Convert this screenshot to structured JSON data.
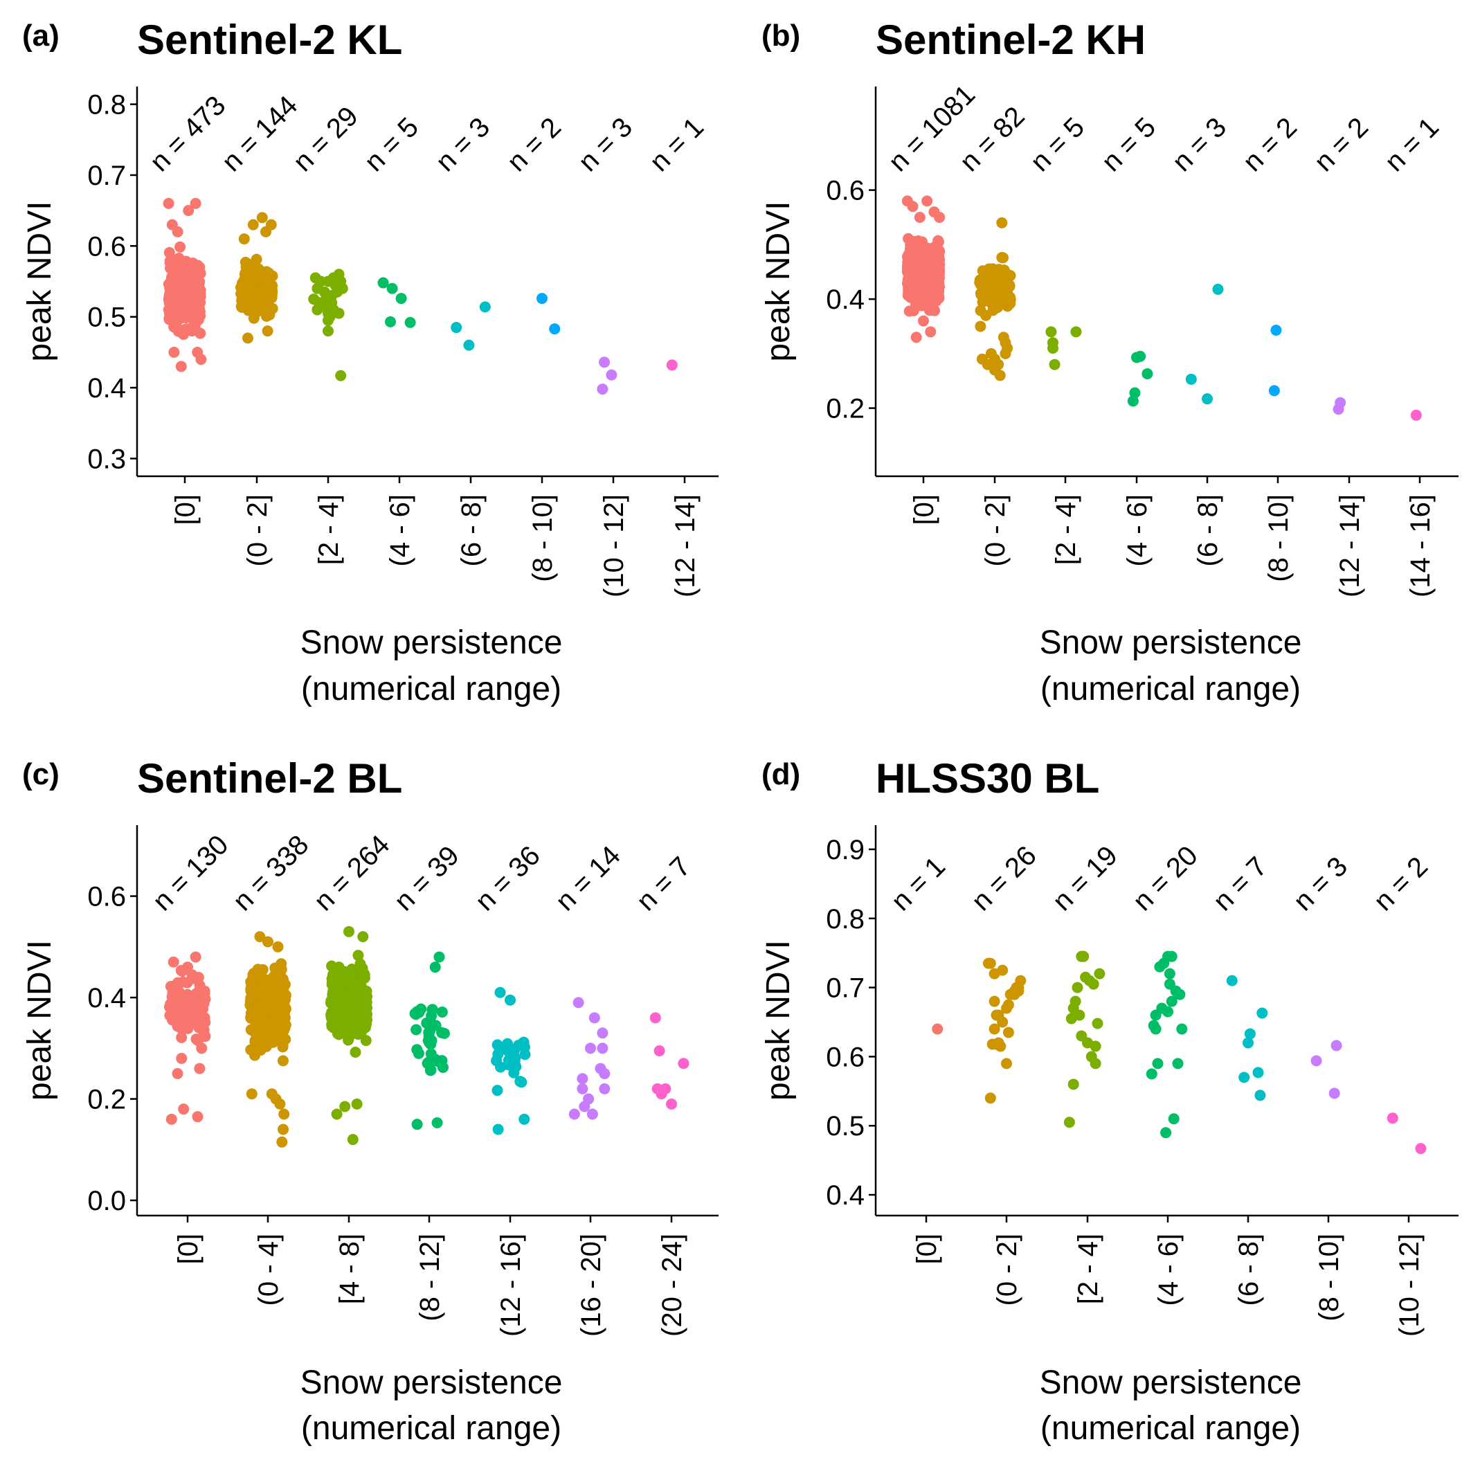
{
  "chart_data": [
    {
      "type": "scatter",
      "letter": "(a)",
      "title": "Sentinel-2 KL",
      "ylabel": "peak NDVI",
      "xlabel_lines": [
        "Snow persistence",
        "(numerical range)"
      ],
      "ylim": [
        0.275,
        0.825
      ],
      "yticks": [
        0.3,
        0.4,
        0.5,
        0.6,
        0.7,
        0.8
      ],
      "ytick_labels": [
        "0.3",
        "0.4",
        "0.5",
        "0.6",
        "0.7",
        "0.8"
      ],
      "categories": [
        "[0]",
        "(0 - 2]",
        "[2 - 4]",
        "(4 - 6]",
        "(6 - 8]",
        "(8 - 10]",
        "(10 - 12]",
        "(12 - 14]"
      ],
      "counts": [
        "n = 473",
        "n = 144",
        "n = 29",
        "n = 5",
        "n = 3",
        "n = 2",
        "n = 3",
        "n = 1"
      ],
      "series": [
        {
          "name": "[0]",
          "color": "#F8766D",
          "n": 473,
          "range": [
            0.43,
            0.66
          ],
          "center": 0.535,
          "x": [
            -0.45,
            -0.4,
            -0.3,
            -0.2,
            -0.1,
            0.0,
            0.1,
            0.2,
            0.3,
            0.4,
            0.45,
            -0.35,
            0.35
          ],
          "y": [
            0.66,
            0.5,
            0.45,
            0.62,
            0.43,
            0.55,
            0.65,
            0.48,
            0.66,
            0.52,
            0.44,
            0.63,
            0.45
          ]
        },
        {
          "name": "(0 - 2]",
          "color": "#CD9600",
          "n": 144,
          "range": [
            0.465,
            0.64
          ],
          "center": 0.535,
          "x": [
            -0.35,
            -0.1,
            0.15,
            0.25,
            0.4,
            -0.25,
            0.3
          ],
          "y": [
            0.61,
            0.63,
            0.64,
            0.62,
            0.63,
            0.47,
            0.48
          ]
        },
        {
          "name": "[2 - 4]",
          "color": "#7CAE00",
          "n": 29,
          "x": [
            -0.35,
            -0.3,
            -0.2,
            -0.1,
            0.0,
            0.05,
            0.15,
            0.25,
            0.35,
            -0.4,
            -0.15,
            0.1,
            0.3,
            0.0,
            0.2,
            -0.25,
            0.05,
            0.15,
            0.3,
            -0.05,
            0.1,
            0.2,
            0.25,
            0.0,
            -0.3,
            0.1,
            0.4,
            0.35,
            0.0
          ],
          "y": [
            0.555,
            0.54,
            0.55,
            0.535,
            0.55,
            0.52,
            0.555,
            0.54,
            0.55,
            0.525,
            0.515,
            0.53,
            0.505,
            0.48,
            0.545,
            0.52,
            0.5,
            0.51,
            0.56,
            0.53,
            0.52,
            0.545,
            0.535,
            0.505,
            0.51,
            0.53,
            0.54,
            0.417,
            0.495
          ]
        },
        {
          "name": "(4 - 6]",
          "color": "#00BE67",
          "n": 5,
          "x": [
            -0.45,
            -0.2,
            0.05,
            0.3,
            -0.25
          ],
          "y": [
            0.548,
            0.54,
            0.526,
            0.492,
            0.493
          ]
        },
        {
          "name": "(6 - 8]",
          "color": "#00BFC4",
          "n": 3,
          "x": [
            -0.4,
            -0.05,
            0.4
          ],
          "y": [
            0.485,
            0.46,
            0.514
          ]
        },
        {
          "name": "(8 - 10]",
          "color": "#00A9FF",
          "n": 2,
          "x": [
            0.0,
            0.35
          ],
          "y": [
            0.526,
            0.483
          ]
        },
        {
          "name": "(10 - 12]",
          "color": "#C77CFF",
          "n": 3,
          "x": [
            -0.3,
            -0.25,
            -0.05
          ],
          "y": [
            0.398,
            0.436,
            0.418
          ]
        },
        {
          "name": "(12 - 14]",
          "color": "#FF61CC",
          "n": 1,
          "x": [
            -0.35
          ],
          "y": [
            0.432
          ]
        }
      ]
    },
    {
      "type": "scatter",
      "letter": "(b)",
      "title": "Sentinel-2 KH",
      "ylabel": "peak NDVI",
      "xlabel_lines": [
        "Snow persistence",
        "(numerical range)"
      ],
      "ylim": [
        0.075,
        0.79
      ],
      "yticks": [
        0.2,
        0.4,
        0.6
      ],
      "ytick_labels": [
        "0.2",
        "0.4",
        "0.6"
      ],
      "categories": [
        "[0]",
        "(0 - 2]",
        "[2 - 4]",
        "(4 - 6]",
        "(6 - 8]",
        "(8 - 10]",
        "(12 - 14]",
        "(14 - 16]"
      ],
      "counts": [
        "n = 1081",
        "n = 82",
        "n = 5",
        "n = 5",
        "n = 3",
        "n = 2",
        "n = 2",
        "n = 1"
      ],
      "series": [
        {
          "name": "[0]",
          "color": "#F8766D",
          "n": 1081,
          "range": [
            0.33,
            0.58
          ],
          "center": 0.445,
          "x": [
            -0.45,
            -0.3,
            -0.1,
            0.1,
            0.3,
            0.45,
            -0.2,
            0.2,
            0.0
          ],
          "y": [
            0.58,
            0.57,
            0.55,
            0.58,
            0.56,
            0.55,
            0.33,
            0.34,
            0.36
          ]
        },
        {
          "name": "(0 - 2]",
          "color": "#CD9600",
          "n": 82,
          "range": [
            0.27,
            0.54
          ],
          "center": 0.42,
          "x": [
            -0.35,
            -0.2,
            0.0,
            0.15,
            0.3,
            -0.4,
            -0.1,
            0.1,
            0.25,
            0.35,
            0.0,
            0.2,
            -0.25,
            0.3
          ],
          "y": [
            0.29,
            0.28,
            0.29,
            0.26,
            0.3,
            0.35,
            0.3,
            0.28,
            0.33,
            0.31,
            0.27,
            0.54,
            0.37,
            0.32
          ]
        },
        {
          "name": "[2 - 4]",
          "color": "#7CAE00",
          "n": 5,
          "x": [
            -0.4,
            -0.35,
            -0.3,
            -0.35,
            0.3
          ],
          "y": [
            0.34,
            0.32,
            0.28,
            0.31,
            0.34
          ]
        },
        {
          "name": "(4 - 6]",
          "color": "#00BE67",
          "n": 5,
          "x": [
            -0.1,
            0.0,
            0.1,
            0.3,
            -0.05
          ],
          "y": [
            0.213,
            0.293,
            0.295,
            0.263,
            0.228
          ]
        },
        {
          "name": "(6 - 8]",
          "color": "#00BFC4",
          "n": 3,
          "x": [
            -0.45,
            0.0,
            0.3
          ],
          "y": [
            0.253,
            0.217,
            0.418
          ]
        },
        {
          "name": "(8 - 10]",
          "color": "#00A9FF",
          "n": 2,
          "x": [
            -0.1,
            -0.05
          ],
          "y": [
            0.232,
            0.343
          ]
        },
        {
          "name": "(12 - 14]",
          "color": "#C77CFF",
          "n": 2,
          "x": [
            -0.3,
            -0.25
          ],
          "y": [
            0.198,
            0.21
          ]
        },
        {
          "name": "(14 - 16]",
          "color": "#FF61CC",
          "n": 1,
          "x": [
            -0.1
          ],
          "y": [
            0.187
          ]
        }
      ]
    },
    {
      "type": "scatter",
      "letter": "(c)",
      "title": "Sentinel-2 BL",
      "ylabel": "peak NDVI",
      "xlabel_lines": [
        "Snow persistence",
        "(numerical range)"
      ],
      "ylim": [
        -0.03,
        0.74
      ],
      "yticks": [
        0.0,
        0.2,
        0.4,
        0.6
      ],
      "ytick_labels": [
        "0.0",
        "0.2",
        "0.4",
        "0.6"
      ],
      "categories": [
        "[0]",
        "(0 - 4]",
        "[4 - 8]",
        "(8 - 12]",
        "(12 - 16]",
        "(16 - 20]",
        "(20 - 24]"
      ],
      "counts": [
        "n = 130",
        "n = 338",
        "n = 264",
        "n = 39",
        "n = 36",
        "n = 14",
        "n = 7"
      ],
      "series": [
        {
          "name": "[0]",
          "color": "#F8766D",
          "n": 130,
          "range": [
            0.16,
            0.48
          ],
          "center": 0.38,
          "x": [
            -0.4,
            -0.1,
            0.25,
            -0.15,
            0.3,
            -0.35,
            0.0,
            0.2,
            -0.25,
            0.35
          ],
          "y": [
            0.16,
            0.18,
            0.165,
            0.28,
            0.26,
            0.47,
            0.46,
            0.48,
            0.25,
            0.3
          ]
        },
        {
          "name": "(0 - 4]",
          "color": "#CD9600",
          "n": 338,
          "range": [
            0.115,
            0.52
          ],
          "center": 0.38,
          "x": [
            0.35,
            0.38,
            0.4,
            0.3,
            0.2,
            0.1,
            -0.4,
            -0.2,
            0.0,
            0.25
          ],
          "y": [
            0.115,
            0.14,
            0.17,
            0.19,
            0.2,
            0.21,
            0.21,
            0.52,
            0.51,
            0.5
          ]
        },
        {
          "name": "[4 - 8]",
          "color": "#7CAE00",
          "n": 264,
          "range": [
            0.15,
            0.53
          ],
          "center": 0.39,
          "x": [
            0.1,
            -0.1,
            0.2,
            -0.3,
            0.35,
            0.0
          ],
          "y": [
            0.12,
            0.185,
            0.19,
            0.17,
            0.52,
            0.53
          ]
        },
        {
          "name": "(8 - 12]",
          "color": "#00BE67",
          "n": 39,
          "spread": 0.38,
          "range": [
            0.15,
            0.48
          ],
          "center": 0.32,
          "x": [
            -0.3,
            0.2,
            0.25,
            0.15
          ],
          "y": [
            0.15,
            0.153,
            0.48,
            0.46
          ]
        },
        {
          "name": "(12 - 16]",
          "color": "#00BFC4",
          "n": 36,
          "spread": 0.4,
          "range": [
            0.14,
            0.41
          ],
          "center": 0.28,
          "x": [
            -0.3,
            0.35,
            -0.25,
            0.0
          ],
          "y": [
            0.14,
            0.16,
            0.41,
            0.395
          ]
        },
        {
          "name": "(16 - 20]",
          "color": "#C77CFF",
          "n": 14,
          "x": [
            -0.4,
            -0.15,
            -0.2,
            0.0,
            0.3,
            0.25,
            0.35,
            -0.3,
            0.05,
            0.3,
            0.35,
            -0.2,
            0.1,
            -0.05
          ],
          "y": [
            0.17,
            0.185,
            0.24,
            0.3,
            0.33,
            0.26,
            0.22,
            0.39,
            0.17,
            0.3,
            0.25,
            0.22,
            0.36,
            0.2
          ]
        },
        {
          "name": "(20 - 24]",
          "color": "#FF61CC",
          "n": 7,
          "x": [
            -0.4,
            -0.3,
            -0.25,
            -0.15,
            0.0,
            -0.35,
            0.3
          ],
          "y": [
            0.36,
            0.295,
            0.21,
            0.22,
            0.19,
            0.22,
            0.27
          ]
        }
      ]
    },
    {
      "type": "scatter",
      "letter": "(d)",
      "title": "HLSS30 BL",
      "ylabel": "peak NDVI",
      "xlabel_lines": [
        "Snow persistence",
        "(numerical range)"
      ],
      "ylim": [
        0.37,
        0.935
      ],
      "yticks": [
        0.4,
        0.5,
        0.6,
        0.7,
        0.8,
        0.9
      ],
      "ytick_labels": [
        "0.4",
        "0.5",
        "0.6",
        "0.7",
        "0.8",
        "0.9"
      ],
      "categories": [
        "[0]",
        "(0 - 2]",
        "[2 - 4]",
        "(4 - 6]",
        "(6 - 8]",
        "(8 - 10]",
        "(10 - 12]"
      ],
      "counts": [
        "n = 1",
        "n = 26",
        "n = 19",
        "n = 20",
        "n = 7",
        "n = 3",
        "n = 2"
      ],
      "series": [
        {
          "name": "[0]",
          "color": "#F8766D",
          "n": 1,
          "x": [
            0.28
          ],
          "y": [
            0.64
          ]
        },
        {
          "name": "(0 - 2]",
          "color": "#CD9600",
          "n": 26,
          "x": [
            -0.45,
            -0.4,
            -0.3,
            -0.35,
            -0.25,
            -0.2,
            -0.1,
            0.0,
            0.1,
            0.2,
            0.3,
            0.35,
            -0.3,
            0.2,
            -0.1,
            0.05,
            -0.2,
            -0.4,
            0.0,
            0.1,
            0.25,
            -0.25,
            -0.3,
            0.3,
            0.05,
            -0.15
          ],
          "y": [
            0.735,
            0.735,
            0.72,
            0.618,
            0.618,
            0.66,
            0.65,
            0.67,
            0.69,
            0.695,
            0.7,
            0.71,
            0.68,
            0.69,
            0.725,
            0.635,
            0.62,
            0.54,
            0.59,
            0.69,
            0.7,
            0.66,
            0.64,
            0.695,
            0.675,
            0.615
          ]
        },
        {
          "name": "[2 - 4]",
          "color": "#7CAE00",
          "n": 19,
          "x": [
            -0.45,
            -0.35,
            -0.3,
            -0.2,
            -0.15,
            -0.1,
            0.0,
            0.1,
            0.2,
            0.25,
            -0.4,
            0.3,
            -0.25,
            0.15,
            -0.05,
            0.05,
            -0.35,
            0.2,
            -0.15
          ],
          "y": [
            0.505,
            0.56,
            0.68,
            0.66,
            0.745,
            0.745,
            0.62,
            0.6,
            0.615,
            0.648,
            0.655,
            0.72,
            0.7,
            0.705,
            0.715,
            0.71,
            0.67,
            0.59,
            0.63
          ]
        },
        {
          "name": "(4 - 6]",
          "color": "#00BE67",
          "n": 20,
          "x": [
            -0.4,
            -0.35,
            -0.3,
            -0.2,
            -0.1,
            0.0,
            0.05,
            0.1,
            0.2,
            0.3,
            0.35,
            -0.25,
            0.15,
            -0.05,
            0.0,
            0.1,
            -0.15,
            0.25,
            0.05,
            -0.3
          ],
          "y": [
            0.575,
            0.645,
            0.66,
            0.73,
            0.735,
            0.745,
            0.72,
            0.745,
            0.695,
            0.69,
            0.64,
            0.59,
            0.51,
            0.49,
            0.665,
            0.68,
            0.67,
            0.59,
            0.705,
            0.64
          ]
        },
        {
          "name": "(6 - 8]",
          "color": "#00BFC4",
          "n": 7,
          "x": [
            -0.4,
            -0.1,
            0.0,
            0.05,
            0.25,
            0.3,
            0.35
          ],
          "y": [
            0.71,
            0.57,
            0.62,
            0.633,
            0.577,
            0.544,
            0.663
          ]
        },
        {
          "name": "(8 - 10]",
          "color": "#C77CFF",
          "n": 3,
          "x": [
            -0.3,
            0.15,
            0.2
          ],
          "y": [
            0.594,
            0.547,
            0.616
          ]
        },
        {
          "name": "(10 - 12]",
          "color": "#FF61CC",
          "n": 2,
          "x": [
            -0.4,
            0.3
          ],
          "y": [
            0.511,
            0.467
          ]
        }
      ]
    }
  ]
}
